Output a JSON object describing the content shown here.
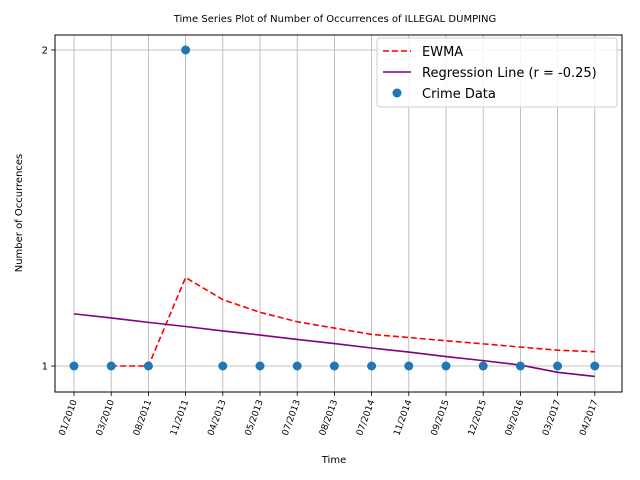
{
  "chart_data": {
    "type": "scatter",
    "title": "Time Series Plot of Number of Occurrences of ILLEGAL DUMPING",
    "xlabel": "Time",
    "ylabel": "Number of Occurrences",
    "categories": [
      "01/2010",
      "03/2010",
      "08/2011",
      "11/2011",
      "04/2013",
      "05/2013",
      "07/2013",
      "08/2013",
      "07/2014",
      "11/2014",
      "09/2015",
      "12/2015",
      "09/2016",
      "03/2017",
      "04/2017"
    ],
    "ylim": [
      0.915,
      2.04
    ],
    "yticks": [
      1,
      2
    ],
    "grid": true,
    "legend_position": "top-right",
    "series": [
      {
        "name": "EWMA",
        "kind": "line",
        "style": "dashed",
        "color": "#ff0000",
        "values": [
          null,
          1.0,
          1.0,
          1.28,
          1.21,
          1.17,
          1.14,
          1.12,
          1.1,
          1.09,
          1.08,
          1.07,
          1.06,
          1.05,
          1.045
        ]
      },
      {
        "name": "Regression Line (r = -0.25)",
        "kind": "line",
        "style": "solid",
        "color": "#800080",
        "values": [
          1.165,
          1.152,
          1.138,
          1.125,
          1.111,
          1.098,
          1.084,
          1.071,
          1.057,
          1.044,
          1.03,
          1.017,
          1.003,
          0.98,
          0.967
        ]
      },
      {
        "name": "Crime Data",
        "kind": "scatter",
        "color": "#1f77b4",
        "values": [
          1,
          1,
          1,
          2,
          1,
          1,
          1,
          1,
          1,
          1,
          1,
          1,
          1,
          1,
          1
        ]
      }
    ]
  }
}
